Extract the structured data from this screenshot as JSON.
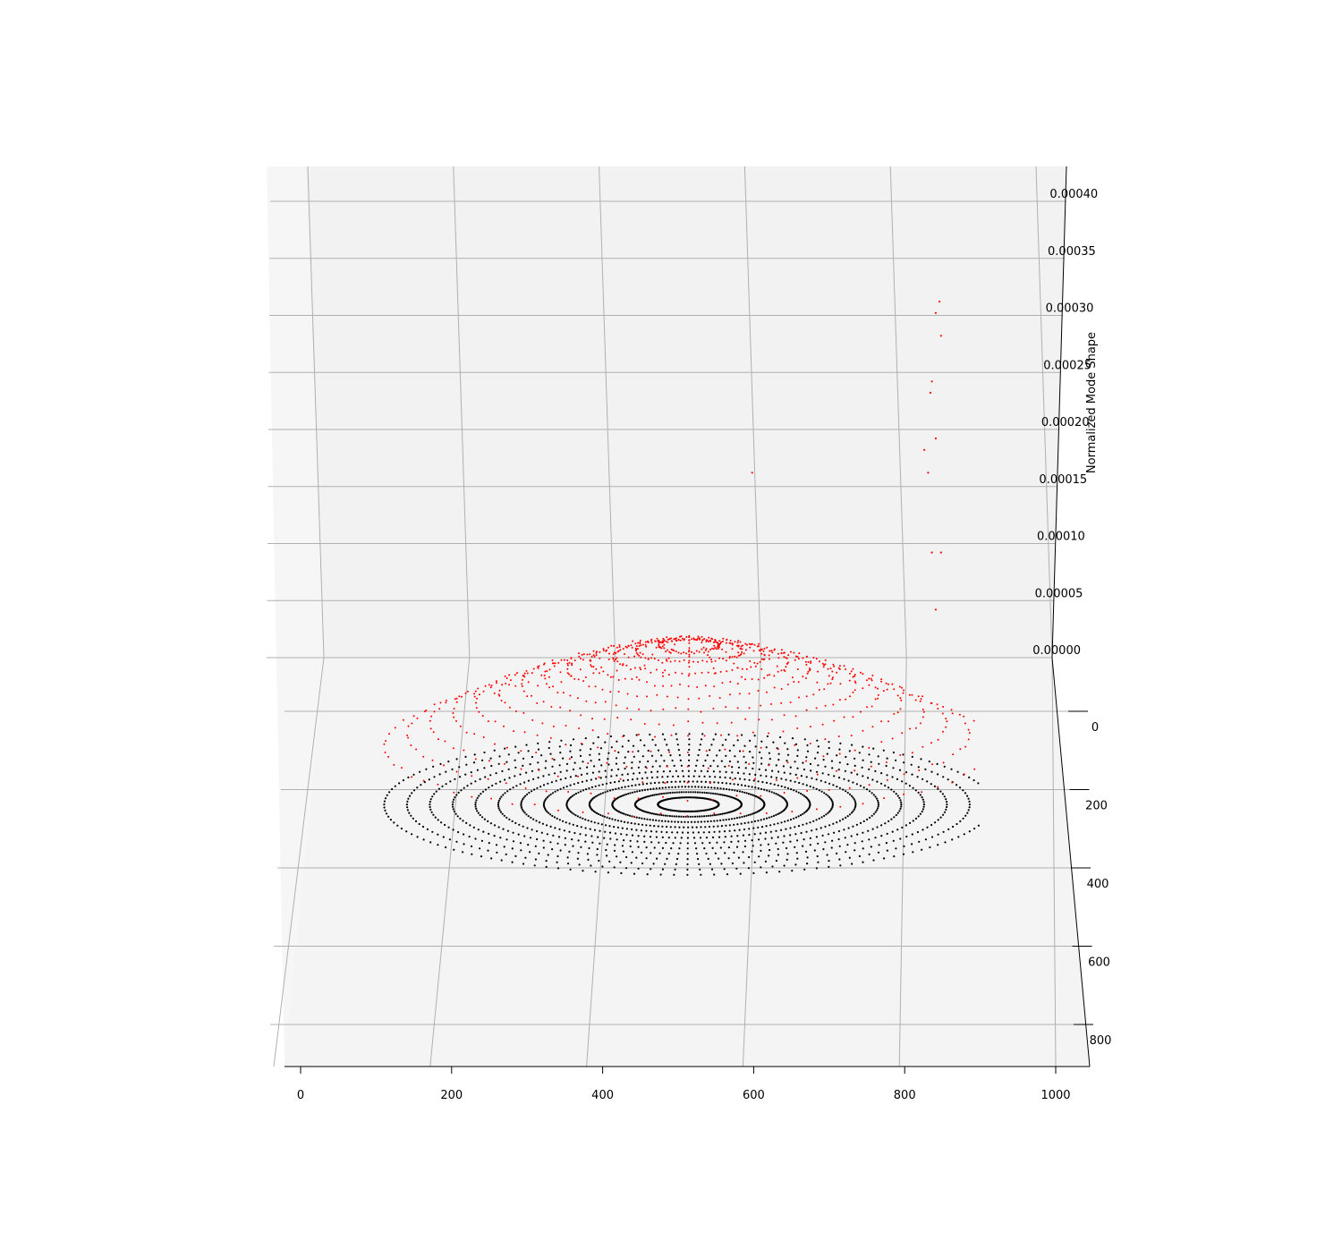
{
  "chart_data": {
    "type": "scatter",
    "projection": "3d",
    "title": "",
    "xlabel": "",
    "ylabel": "",
    "zlabel": "Normalized Mode Shape",
    "xlim": [
      0,
      1000
    ],
    "ylim": [
      0,
      800
    ],
    "zlim": [
      0,
      0.0004
    ],
    "x_ticks": [
      "0",
      "200",
      "400",
      "600",
      "800",
      "1000"
    ],
    "y_ticks": [
      "0",
      "200",
      "400",
      "600",
      "800"
    ],
    "z_ticks": [
      "0.00000",
      "0.00005",
      "0.00010",
      "0.00015",
      "0.00020",
      "0.00025",
      "0.00030",
      "0.00035",
      "0.00040"
    ],
    "grid": true,
    "legend": "none",
    "colors": {
      "deformed": "#ff0000",
      "undeformed": "#000000",
      "pane": "#f2f2f2",
      "grid": "#b0b0b0"
    },
    "series": [
      {
        "role": "undeformed",
        "color": "#000000",
        "structure": "radial_and_concentric",
        "center": [
          515,
          215
        ],
        "radial_lines": 24,
        "rings": 13,
        "ring_radius_range": [
          40,
          400
        ],
        "z": 0
      },
      {
        "role": "deformed",
        "color": "#ff0000",
        "structure": "radial_and_concentric",
        "center": [
          515,
          215
        ],
        "radial_lines": 24,
        "rings": 13,
        "ring_radius_range": [
          40,
          400
        ],
        "z_peak": 5e-05,
        "outliers": [
          {
            "x": 710,
            "y": 215,
            "z": 0.00032
          },
          {
            "x": 705,
            "y": 215,
            "z": 0.00031
          },
          {
            "x": 712,
            "y": 215,
            "z": 0.00029
          },
          {
            "x": 700,
            "y": 215,
            "z": 0.00025
          },
          {
            "x": 698,
            "y": 215,
            "z": 0.00024
          },
          {
            "x": 705,
            "y": 215,
            "z": 0.0002
          },
          {
            "x": 690,
            "y": 215,
            "z": 0.00019
          },
          {
            "x": 695,
            "y": 215,
            "z": 0.00017
          },
          {
            "x": 540,
            "y": 215,
            "z": 0.00017
          },
          {
            "x": 700,
            "y": 215,
            "z": 0.0001
          },
          {
            "x": 712,
            "y": 215,
            "z": 0.0001
          },
          {
            "x": 705,
            "y": 215,
            "z": 5e-05
          }
        ]
      }
    ]
  }
}
